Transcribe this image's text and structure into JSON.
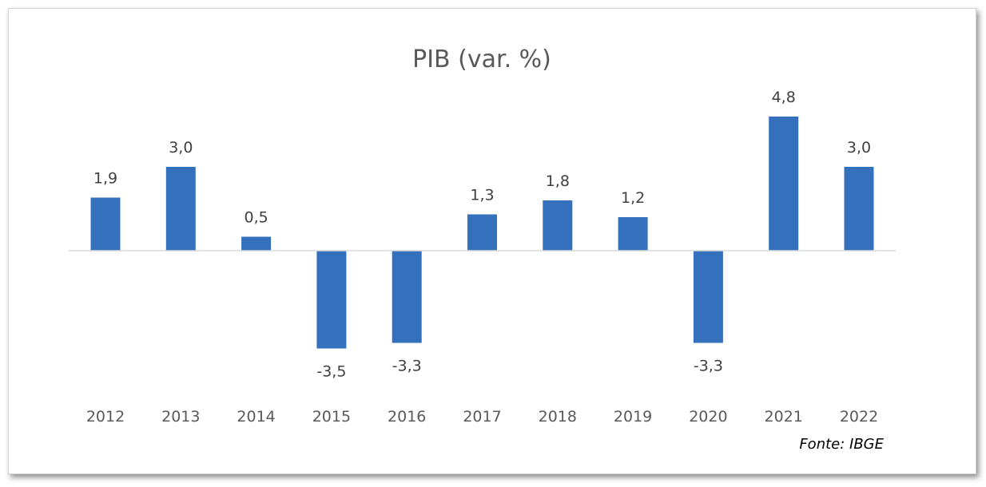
{
  "chart_data": {
    "type": "bar",
    "title": "PIB (var. %)",
    "categories": [
      "2012",
      "2013",
      "2014",
      "2015",
      "2016",
      "2017",
      "2018",
      "2019",
      "2020",
      "2021",
      "2022"
    ],
    "values": [
      1.9,
      3.0,
      0.5,
      -3.5,
      -3.3,
      1.3,
      1.8,
      1.2,
      -3.3,
      4.8,
      3.0
    ],
    "value_labels": [
      "1,9",
      "3,0",
      "0,5",
      "-3,5",
      "-3,3",
      "1,3",
      "1,8",
      "1,2",
      "-3,3",
      "4,8",
      "3,0"
    ],
    "xlabel": "",
    "ylabel": "",
    "ylim": [
      -5,
      6
    ],
    "grid": false,
    "legend": "none",
    "bar_color": "#3570BD",
    "axis_color": "#d9d9d9",
    "source": "Fonte: IBGE"
  }
}
